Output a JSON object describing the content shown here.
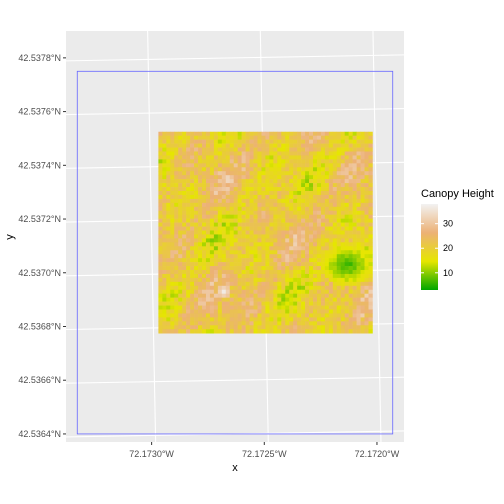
{
  "chart_data": {
    "type": "heatmap",
    "title": "",
    "xlabel": "x",
    "ylabel": "y",
    "x_tick_labels": [
      "72.1730°W",
      "72.1725°W",
      "72.1720°W"
    ],
    "y_tick_labels": [
      "42.5364°N",
      "42.5366°N",
      "42.5368°N",
      "42.5370°N",
      "42.5372°N",
      "42.5374°N",
      "42.5376°N",
      "42.5378°N"
    ],
    "xlim": [
      -72.17338,
      -72.17188
    ],
    "ylim": [
      42.53637,
      42.5379
    ],
    "grid": true,
    "legend": {
      "title": "Canopy Height",
      "position": "right",
      "breaks": [
        30,
        20,
        10
      ],
      "range": [
        3,
        38
      ],
      "colors": [
        "#00a600",
        "#e6e600",
        "#ecb176",
        "#f2f2f2"
      ]
    },
    "raster": {
      "xmin": -72.17297,
      "xmax": -72.17202,
      "ymin": 42.536775,
      "ymax": 42.537525,
      "typical_height": 21,
      "low_canopy_patch": {
        "x": -72.17213,
        "y": 42.53703,
        "min_height": 4
      },
      "tall_spot": {
        "x": -72.17268,
        "y": 42.53693,
        "height": 37
      }
    },
    "boundary": {
      "xmin": -72.17333,
      "xmax": -72.17193,
      "ymin": 42.5364,
      "ymax": 42.53775,
      "color": "#6666ff"
    }
  }
}
